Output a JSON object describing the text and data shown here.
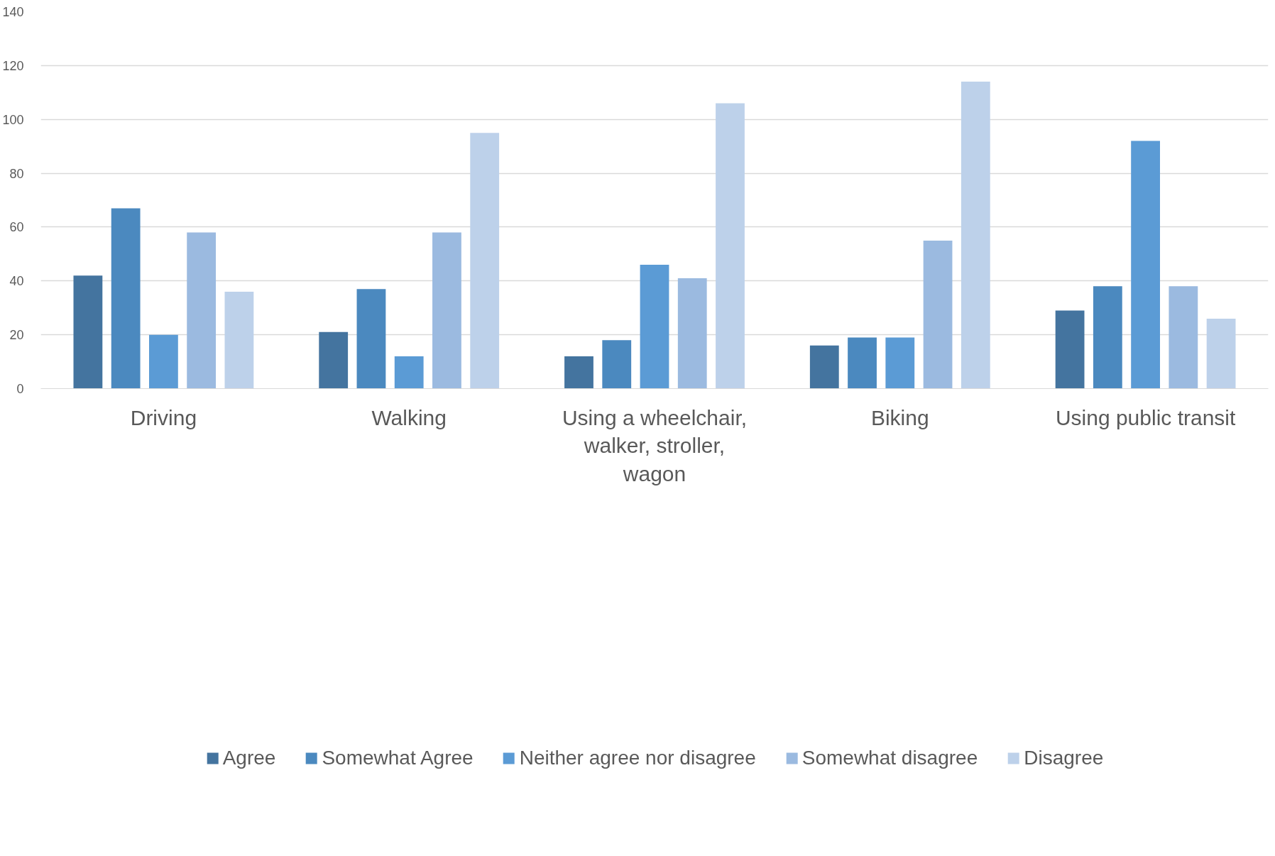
{
  "chart_data": {
    "type": "bar",
    "categories": [
      "Driving",
      "Walking",
      "Using a wheelchair, walker, stroller, wagon",
      "Biking",
      "Using public transit"
    ],
    "series": [
      {
        "name": "Agree",
        "color": "#44749f",
        "values": [
          42,
          21,
          12,
          16,
          29
        ]
      },
      {
        "name": "Somewhat Agree",
        "color": "#4b89bf",
        "values": [
          67,
          37,
          18,
          19,
          38
        ]
      },
      {
        "name": "Neither agree nor disagree",
        "color": "#5b9bd5",
        "values": [
          20,
          12,
          46,
          19,
          92
        ]
      },
      {
        "name": "Somewhat disagree",
        "color": "#9bbae0",
        "values": [
          58,
          58,
          41,
          55,
          38
        ]
      },
      {
        "name": "Disagree",
        "color": "#bdd1ea",
        "values": [
          36,
          95,
          106,
          114,
          26
        ]
      }
    ],
    "ylim": [
      0,
      140
    ],
    "yticks": [
      0,
      20,
      40,
      60,
      80,
      100,
      120,
      140
    ],
    "grid": "y",
    "legend": "bottom"
  }
}
